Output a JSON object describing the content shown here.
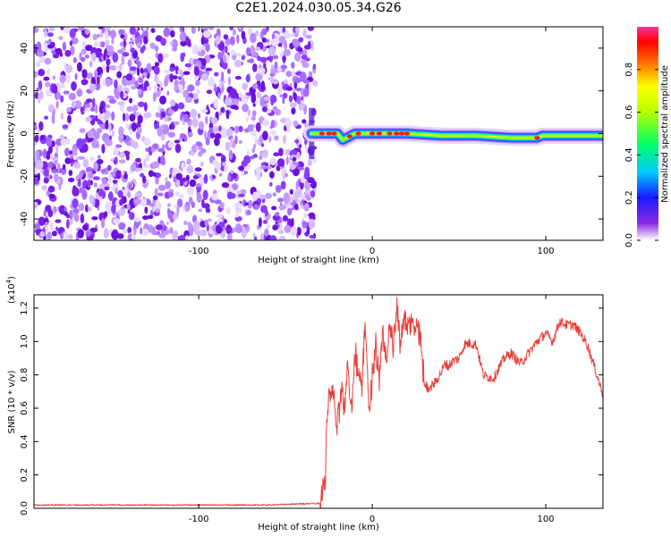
{
  "title": "C2E1.2024.030.05.34.G26",
  "chart_data": [
    {
      "type": "heatmap",
      "xlabel": "Height of straight line (km)",
      "ylabel": "Frequency (Hz)",
      "xlim": [
        -195,
        133
      ],
      "ylim": [
        -50,
        50
      ],
      "xticks": [
        -100,
        0,
        100
      ],
      "xtick_labels": [
        "-100",
        "0",
        "100"
      ],
      "yticks": [
        -40,
        -20,
        0,
        20,
        40
      ],
      "ytick_labels": [
        "-40",
        "-20",
        "0",
        "20",
        "40"
      ],
      "grid": false,
      "noise_region_x": [
        -195,
        -35
      ],
      "signal_onset_x": -35,
      "signal_track": {
        "x": [
          -35,
          -20,
          -17,
          -10,
          0,
          20,
          40,
          60,
          80,
          95,
          98,
          110,
          133
        ],
        "frequency": [
          0,
          0,
          -3,
          0,
          0,
          0,
          -1,
          -1,
          -2,
          -2,
          -1,
          -1,
          -1
        ]
      },
      "signal_peaks_x": [
        -29,
        -25,
        -22,
        -13,
        -8,
        0,
        4,
        10,
        14,
        17,
        20,
        95
      ],
      "colorbar": {
        "label": "Normalized spectral amplitude",
        "range": [
          0,
          1
        ],
        "ticks": [
          0.0,
          0.2,
          0.4,
          0.6,
          0.8
        ],
        "tick_labels": [
          "0.0",
          "0.2",
          "0.4",
          "0.6",
          "0.8"
        ]
      }
    },
    {
      "type": "line",
      "xlabel": "Height of straight line (km)",
      "ylabel": "SNR (10 * v/v)",
      "scale_label": "(x10",
      "scale_exponent": "4",
      "xlim": [
        -195,
        133
      ],
      "ylim": [
        0,
        1.28
      ],
      "xticks": [
        -100,
        0,
        100
      ],
      "xtick_labels": [
        "-100",
        "0",
        "100"
      ],
      "yticks": [
        0.0,
        0.2,
        0.4,
        0.6,
        0.8,
        1.0,
        1.2
      ],
      "ytick_labels": [
        "0.0",
        "0.2",
        "0.4",
        "0.6",
        "0.8",
        "1.0",
        "1.2"
      ],
      "grid": false,
      "series": [
        {
          "color": "#e8413c",
          "x": [
            -195,
            -60,
            -30,
            -27,
            -26,
            -24,
            -22,
            -20,
            -18,
            -16,
            -14,
            -12,
            -10,
            -8,
            -6,
            -4,
            -2,
            0,
            2,
            4,
            6,
            8,
            10,
            12,
            14,
            16,
            18,
            20,
            22,
            24,
            26,
            28,
            30,
            32,
            36,
            40,
            42,
            44,
            46,
            50,
            53,
            56,
            60,
            64,
            66,
            70,
            76,
            80,
            84,
            86,
            90,
            95,
            100,
            104,
            108,
            112,
            116,
            120,
            124,
            128,
            133
          ],
          "y": [
            0.02,
            0.02,
            0.03,
            0.2,
            0.55,
            0.72,
            0.62,
            0.5,
            0.7,
            0.62,
            0.85,
            0.6,
            0.95,
            0.8,
            0.72,
            1.15,
            0.55,
            0.8,
            0.98,
            0.75,
            1.05,
            0.9,
            1.1,
            0.95,
            1.2,
            1.0,
            1.15,
            1.05,
            1.12,
            1.08,
            1.1,
            1.0,
            0.75,
            0.72,
            0.75,
            0.82,
            0.87,
            0.85,
            0.88,
            0.9,
            0.98,
            0.99,
            0.98,
            0.8,
            0.79,
            0.78,
            0.9,
            0.93,
            0.88,
            0.87,
            0.93,
            1.0,
            1.05,
            1.0,
            1.12,
            1.1,
            1.1,
            1.05,
            0.98,
            0.85,
            0.68
          ]
        }
      ]
    }
  ]
}
